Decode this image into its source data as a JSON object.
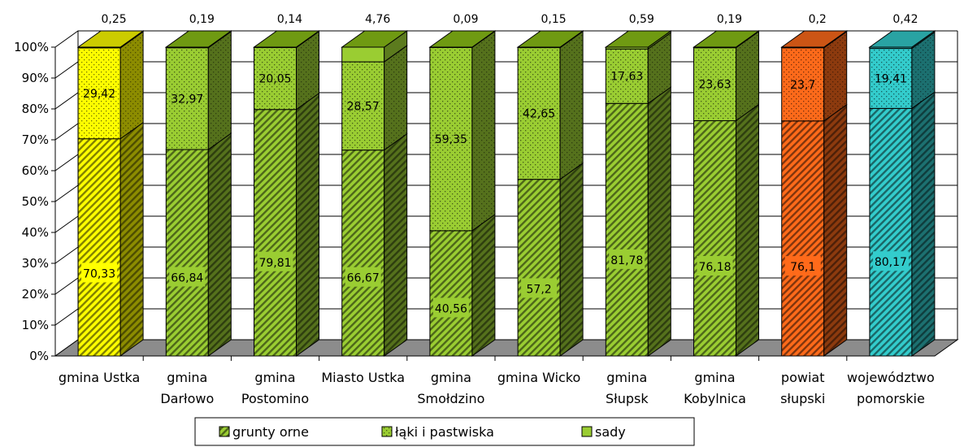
{
  "chart_data": {
    "type": "bar",
    "stacked": "percent",
    "three_d": true,
    "categories": [
      "gmina Ustka",
      "gmina Darłowo",
      "gmina Postomino",
      "Miasto Ustka",
      "gmina Smołdzino",
      "gmina Wicko",
      "gmina Słupsk",
      "gmina Kobylnica",
      "powiat słupski",
      "województwo pomorskie"
    ],
    "category_lines": [
      [
        "gmina Ustka"
      ],
      [
        "gmina",
        "Darłowo"
      ],
      [
        "gmina",
        "Postomino"
      ],
      [
        "Miasto Ustka"
      ],
      [
        "gmina",
        "Smołdzino"
      ],
      [
        "gmina Wicko"
      ],
      [
        "gmina",
        "Słupsk"
      ],
      [
        "gmina",
        "Kobylnica"
      ],
      [
        "powiat",
        "słupski"
      ],
      [
        "województwo",
        "pomorskie"
      ]
    ],
    "series": [
      {
        "name": "grunty orne",
        "values": [
          70.33,
          66.84,
          79.81,
          66.67,
          40.56,
          57.2,
          81.78,
          76.18,
          76.1,
          80.17
        ],
        "labels": [
          "70,33",
          "66,84",
          "79,81",
          "66,67",
          "40,56",
          "57,2",
          "81,78",
          "76,18",
          "76,1",
          "80,17"
        ]
      },
      {
        "name": "łąki i pastwiska",
        "values": [
          29.42,
          32.97,
          20.05,
          28.57,
          59.35,
          42.65,
          17.63,
          23.63,
          23.7,
          19.41
        ],
        "labels": [
          "29,42",
          "32,97",
          "20,05",
          "28,57",
          "59,35",
          "42,65",
          "17,63",
          "23,63",
          "23,7",
          "19,41"
        ]
      },
      {
        "name": "sady",
        "values": [
          0.25,
          0.19,
          0.14,
          4.76,
          0.09,
          0.15,
          0.59,
          0.19,
          0.2,
          0.42
        ],
        "labels": [
          "0,25",
          "0,19",
          "0,14",
          "4,76",
          "0,09",
          "0,15",
          "0,59",
          "0,19",
          "0,2",
          "0,42"
        ]
      }
    ],
    "yaxis": {
      "ticks": [
        "0%",
        "10%",
        "20%",
        "30%",
        "40%",
        "50%",
        "60%",
        "70%",
        "80%",
        "90%",
        "100%"
      ],
      "ylim": [
        0,
        100
      ]
    },
    "grid": true,
    "legend": "bottom",
    "colors": {
      "default_base": "#9acd32",
      "default_dark": "#4f6f0c",
      "custom": {
        "0": "#ffff00",
        "8": "#ff6a1a",
        "9": "#33cccc"
      },
      "floor": "#8c8c8c",
      "grid": "#000000"
    }
  }
}
